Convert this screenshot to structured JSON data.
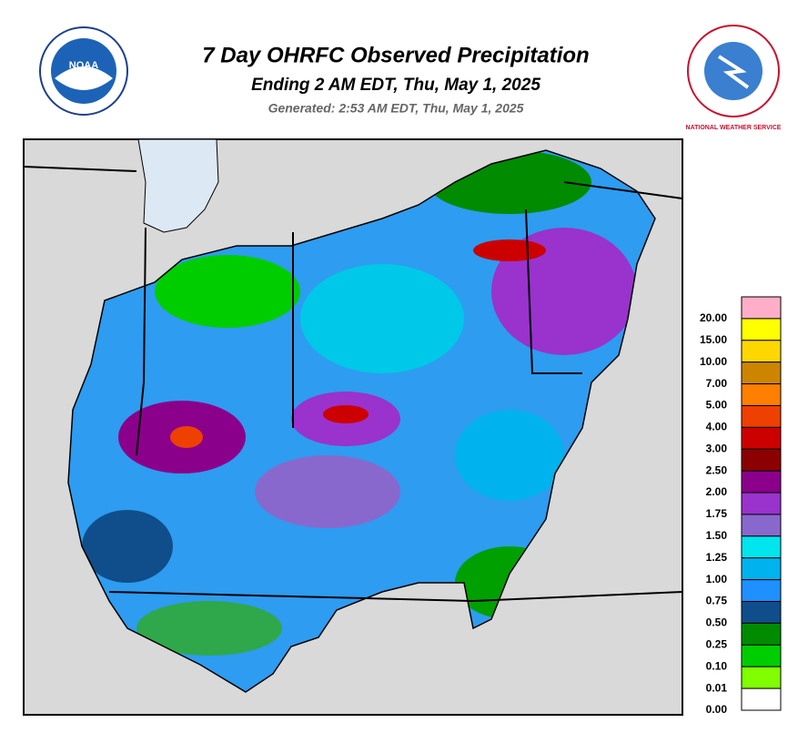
{
  "header": {
    "title": "7 Day OHRFC Observed Precipitation",
    "subtitle": "Ending 2 AM EDT, Thu, May 1, 2025",
    "generated": "Generated: 2:53 AM EDT, Thu, May 1, 2025"
  },
  "logos": {
    "noaa": "NOAA",
    "nws": "NATIONAL WEATHER SERVICE"
  },
  "legend": {
    "items": [
      {
        "label": "20.00",
        "color": "#ffaec9"
      },
      {
        "label": "15.00",
        "color": "#ffff00"
      },
      {
        "label": "10.00",
        "color": "#ffd700"
      },
      {
        "label": "7.00",
        "color": "#cd8500"
      },
      {
        "label": "5.00",
        "color": "#ff7f00"
      },
      {
        "label": "4.00",
        "color": "#ee4000"
      },
      {
        "label": "3.00",
        "color": "#cd0000"
      },
      {
        "label": "2.50",
        "color": "#8b0000"
      },
      {
        "label": "2.00",
        "color": "#8b008b"
      },
      {
        "label": "1.75",
        "color": "#9a32cd"
      },
      {
        "label": "1.50",
        "color": "#8968cd"
      },
      {
        "label": "1.25",
        "color": "#00e5ee"
      },
      {
        "label": "1.00",
        "color": "#00b2ee"
      },
      {
        "label": "0.75",
        "color": "#1e90ff"
      },
      {
        "label": "0.50",
        "color": "#104e8b"
      },
      {
        "label": "0.25",
        "color": "#008b00"
      },
      {
        "label": "0.10",
        "color": "#00cd00"
      },
      {
        "label": "0.01",
        "color": "#7fff00"
      },
      {
        "label": "0.00",
        "color": "#ffffff"
      }
    ]
  }
}
